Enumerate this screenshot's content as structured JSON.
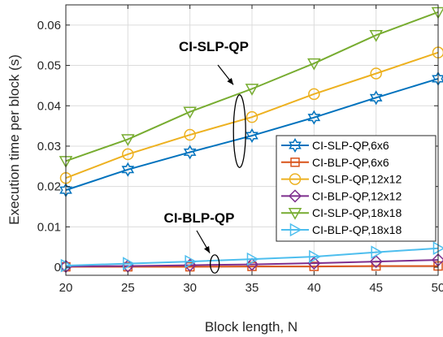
{
  "chart_data": {
    "type": "line",
    "xlabel": "Block length, N",
    "ylabel": "Execution time per block (s)",
    "xlim": [
      20,
      50
    ],
    "ylim": [
      -0.002,
      0.065
    ],
    "xticks": [
      20,
      25,
      30,
      35,
      40,
      45,
      50
    ],
    "yticks": [
      0,
      0.01,
      0.02,
      0.03,
      0.04,
      0.05,
      0.06
    ],
    "ytick_labels": [
      "0",
      "0.01",
      "0.02",
      "0.03",
      "0.04",
      "0.05",
      "0.06"
    ],
    "grid": true,
    "legend_position": "middle-right",
    "x": [
      20,
      25,
      30,
      35,
      40,
      45,
      50
    ],
    "series": [
      {
        "name": "CI-SLP-QP,6x6",
        "color": "#0072BD",
        "marker": "hexagram",
        "values": [
          0.0191,
          0.0242,
          0.0285,
          0.0326,
          0.0371,
          0.042,
          0.0467
        ]
      },
      {
        "name": "CI-BLP-QP,6x6",
        "color": "#D95319",
        "marker": "square",
        "values": [
          0.0001,
          0.0001,
          0.0001,
          0.0002,
          0.0002,
          0.0003,
          0.0003
        ]
      },
      {
        "name": "CI-SLP-QP,12x12",
        "color": "#EDB120",
        "marker": "circle",
        "values": [
          0.0221,
          0.028,
          0.0328,
          0.0372,
          0.0429,
          0.048,
          0.0532
        ]
      },
      {
        "name": "CI-BLP-QP,12x12",
        "color": "#7E2F8E",
        "marker": "diamond",
        "values": [
          0.0002,
          0.0003,
          0.0005,
          0.0007,
          0.001,
          0.0014,
          0.0018
        ]
      },
      {
        "name": "CI-SLP-QP,18x18",
        "color": "#77AC30",
        "marker": "triangle-down",
        "values": [
          0.0263,
          0.0317,
          0.0385,
          0.0442,
          0.0505,
          0.0575,
          0.0632
        ]
      },
      {
        "name": "CI-BLP-QP,18x18",
        "color": "#4DBEEE",
        "marker": "triangle-right",
        "values": [
          0.0004,
          0.0009,
          0.0014,
          0.002,
          0.0026,
          0.0037,
          0.0047
        ]
      }
    ],
    "annotations": [
      {
        "text": "CI-SLP-QP",
        "arrow_to": [
          33.5,
          0.0452
        ],
        "ellipse_center": [
          34.0,
          0.0337
        ],
        "ellipse_height": 0.018
      },
      {
        "text": "CI-BLP-QP",
        "arrow_to": [
          31.6,
          0.0035
        ],
        "ellipse_center": [
          32.0,
          0.0008
        ],
        "ellipse_height": 0.0045
      }
    ]
  }
}
